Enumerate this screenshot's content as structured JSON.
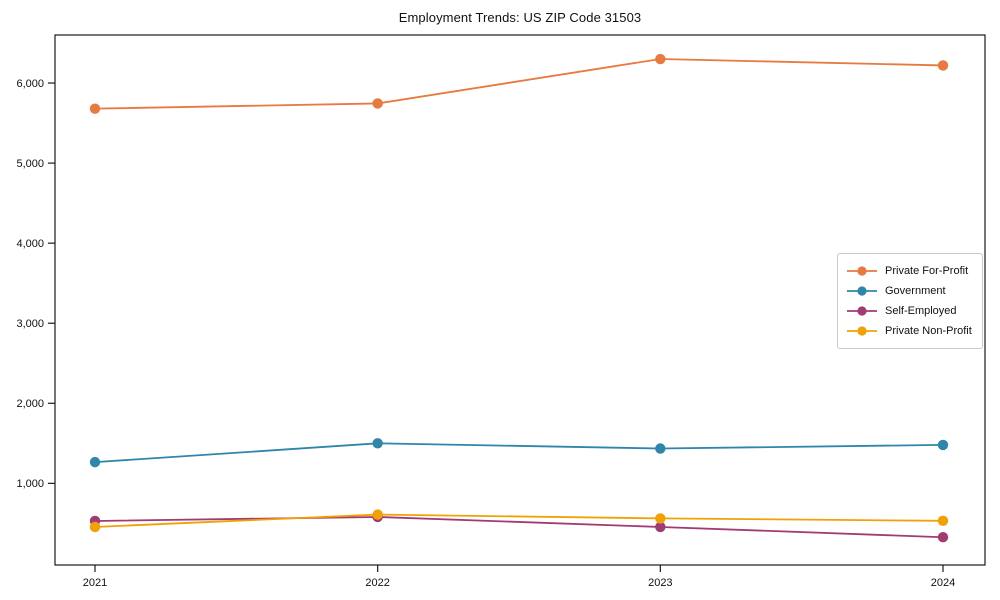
{
  "chart_data": {
    "type": "line",
    "title": "Employment Trends: US ZIP Code 31503",
    "x": [
      "2021",
      "2022",
      "2023",
      "2024"
    ],
    "series": [
      {
        "name": "Private For-Profit",
        "color": "#E8793F",
        "values": [
          5680,
          5745,
          6300,
          6220
        ]
      },
      {
        "name": "Government",
        "color": "#2E86AB",
        "values": [
          1265,
          1500,
          1435,
          1480
        ]
      },
      {
        "name": "Self-Employed",
        "color": "#A23B72",
        "values": [
          530,
          580,
          455,
          327
        ]
      },
      {
        "name": "Private Non-Profit",
        "color": "#F2A104",
        "values": [
          455,
          610,
          562,
          532
        ]
      }
    ],
    "ylim": [
      -20,
      6600
    ],
    "yticks": [
      1000,
      2000,
      3000,
      4000,
      5000,
      6000
    ],
    "ytick_labels": [
      "1,000",
      "2,000",
      "3,000",
      "4,000",
      "5,000",
      "6,000"
    ],
    "legend_position": "center right",
    "grid": false,
    "marker": "circle",
    "axis_color": "#1a1a1a"
  }
}
